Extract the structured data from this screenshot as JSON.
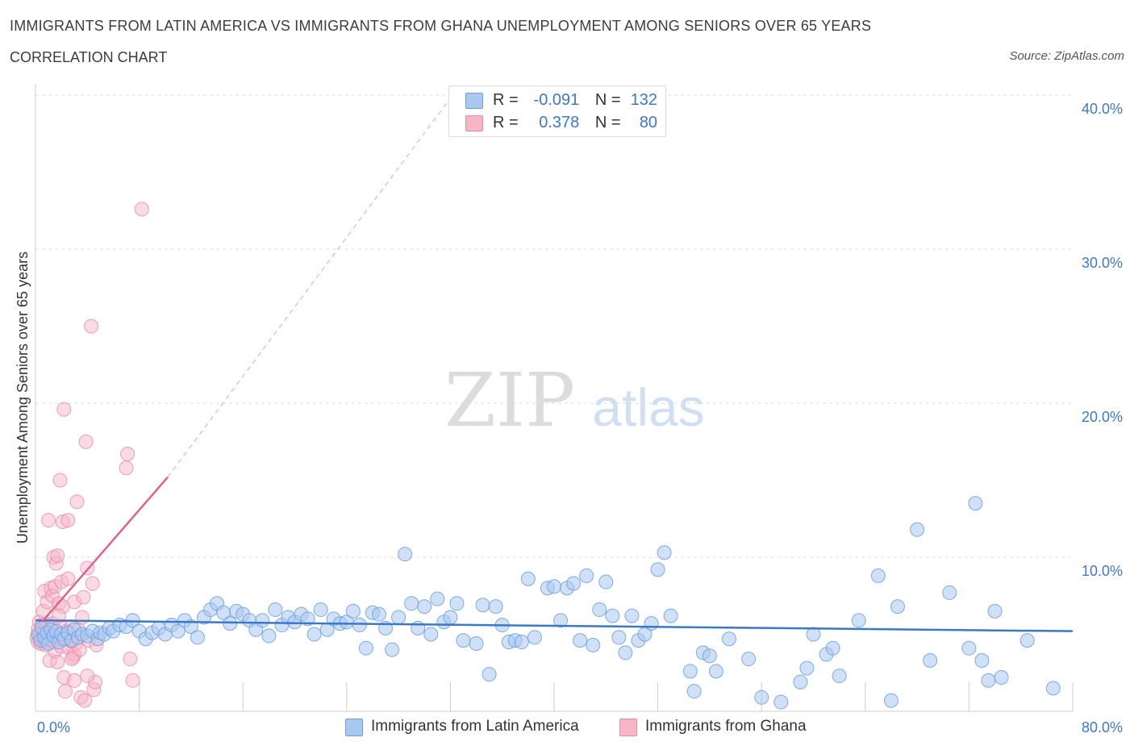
{
  "header": {
    "title": "IMMIGRANTS FROM LATIN AMERICA VS IMMIGRANTS FROM GHANA UNEMPLOYMENT AMONG SENIORS OVER 65 YEARS",
    "subtitle": "CORRELATION CHART",
    "source": "Source: ZipAtlas.com"
  },
  "legend": {
    "r_label": "R =",
    "n_label": "N =",
    "series": [
      {
        "r": "-0.091",
        "n": "132"
      },
      {
        "r": "0.378",
        "n": "80"
      }
    ]
  },
  "watermark": {
    "zip": "ZIP",
    "atlas": "atlas"
  },
  "colors": {
    "blue_fill": "#a9c8f0",
    "blue_stroke": "#6a9ee0",
    "blue_line": "#3b78c7",
    "pink_fill": "#f6b6c8",
    "pink_stroke": "#e88aa6",
    "pink_line": "#e0628c",
    "axis_label": "#3d78c9",
    "grid": "#dcdcdc"
  },
  "chart_data": {
    "type": "scatter",
    "title": "IMMIGRANTS FROM LATIN AMERICA VS IMMIGRANTS FROM GHANA UNEMPLOYMENT AMONG SENIORS OVER 65 YEARS",
    "xlabel": "",
    "ylabel": "Unemployment Among Seniors over 65 years",
    "xlim": [
      0,
      80
    ],
    "ylim": [
      0,
      40
    ],
    "x_tick_labels": [
      "0.0%",
      "80.0%"
    ],
    "y_ticks": [
      10,
      20,
      30,
      40
    ],
    "y_tick_labels": [
      "10.0%",
      "20.0%",
      "30.0%",
      "40.0%"
    ],
    "series": [
      {
        "name": "Immigrants from Latin America",
        "color": "blue",
        "trend": {
          "x0": 0,
          "y0": 5.9,
          "x1": 80,
          "y1": 5.2
        },
        "points": [
          [
            0.2,
            5.0
          ],
          [
            0.4,
            4.6
          ],
          [
            0.5,
            5.4
          ],
          [
            0.7,
            4.8
          ],
          [
            0.9,
            5.1
          ],
          [
            1.0,
            4.4
          ],
          [
            1.2,
            5.3
          ],
          [
            1.4,
            4.9
          ],
          [
            1.6,
            5.2
          ],
          [
            1.8,
            4.5
          ],
          [
            2.0,
            5.0
          ],
          [
            2.2,
            4.7
          ],
          [
            2.5,
            5.1
          ],
          [
            2.8,
            4.6
          ],
          [
            3.0,
            5.3
          ],
          [
            3.3,
            4.8
          ],
          [
            3.6,
            5.0
          ],
          [
            4.0,
            4.9
          ],
          [
            4.4,
            5.2
          ],
          [
            4.8,
            4.7
          ],
          [
            5.0,
            5.1
          ],
          [
            5.3,
            5.0
          ],
          [
            5.7,
            5.4
          ],
          [
            6.0,
            5.2
          ],
          [
            6.5,
            5.6
          ],
          [
            7.0,
            5.5
          ],
          [
            7.5,
            5.9
          ],
          [
            8.0,
            5.2
          ],
          [
            8.5,
            4.7
          ],
          [
            9.0,
            5.1
          ],
          [
            9.5,
            5.4
          ],
          [
            10.0,
            5.0
          ],
          [
            10.5,
            5.6
          ],
          [
            11.0,
            5.2
          ],
          [
            11.5,
            5.9
          ],
          [
            12.0,
            5.5
          ],
          [
            12.5,
            4.8
          ],
          [
            13.0,
            6.1
          ],
          [
            13.5,
            6.6
          ],
          [
            14.0,
            7.0
          ],
          [
            14.5,
            6.4
          ],
          [
            15.0,
            5.7
          ],
          [
            15.5,
            6.5
          ],
          [
            16.0,
            6.3
          ],
          [
            16.5,
            5.9
          ],
          [
            17.0,
            5.3
          ],
          [
            17.5,
            5.9
          ],
          [
            18.0,
            4.9
          ],
          [
            18.5,
            6.6
          ],
          [
            19.0,
            5.6
          ],
          [
            19.5,
            6.1
          ],
          [
            20.0,
            5.8
          ],
          [
            20.5,
            6.3
          ],
          [
            21.0,
            6.0
          ],
          [
            21.5,
            5.0
          ],
          [
            22.0,
            6.6
          ],
          [
            22.5,
            5.3
          ],
          [
            23.0,
            6.0
          ],
          [
            23.5,
            5.7
          ],
          [
            24.0,
            5.8
          ],
          [
            24.5,
            6.5
          ],
          [
            25.0,
            5.6
          ],
          [
            25.5,
            4.1
          ],
          [
            26.0,
            6.4
          ],
          [
            26.5,
            6.3
          ],
          [
            27.0,
            5.4
          ],
          [
            27.5,
            4.0
          ],
          [
            28.0,
            6.1
          ],
          [
            28.5,
            10.2
          ],
          [
            29.0,
            7.0
          ],
          [
            29.5,
            5.4
          ],
          [
            30.0,
            6.8
          ],
          [
            30.5,
            5.0
          ],
          [
            31.0,
            7.3
          ],
          [
            31.5,
            5.8
          ],
          [
            32.0,
            6.1
          ],
          [
            32.5,
            7.0
          ],
          [
            33.0,
            4.6
          ],
          [
            34.0,
            4.4
          ],
          [
            34.5,
            6.9
          ],
          [
            35.0,
            2.4
          ],
          [
            35.5,
            6.8
          ],
          [
            36.0,
            5.6
          ],
          [
            36.5,
            4.5
          ],
          [
            37.0,
            4.6
          ],
          [
            37.5,
            4.5
          ],
          [
            38.0,
            8.6
          ],
          [
            38.5,
            4.8
          ],
          [
            39.5,
            8.0
          ],
          [
            40.0,
            8.1
          ],
          [
            40.5,
            5.9
          ],
          [
            41.0,
            8.0
          ],
          [
            41.5,
            8.3
          ],
          [
            42.0,
            4.6
          ],
          [
            42.5,
            8.8
          ],
          [
            43.0,
            4.3
          ],
          [
            43.5,
            6.6
          ],
          [
            44.0,
            8.4
          ],
          [
            44.5,
            6.2
          ],
          [
            45.0,
            4.8
          ],
          [
            45.5,
            3.8
          ],
          [
            46.0,
            6.2
          ],
          [
            46.5,
            4.6
          ],
          [
            47.0,
            5.0
          ],
          [
            47.5,
            5.7
          ],
          [
            48.0,
            9.2
          ],
          [
            48.5,
            10.3
          ],
          [
            49.0,
            6.2
          ],
          [
            50.5,
            2.6
          ],
          [
            50.8,
            1.3
          ],
          [
            51.5,
            3.8
          ],
          [
            52.0,
            3.6
          ],
          [
            52.5,
            2.6
          ],
          [
            53.5,
            4.7
          ],
          [
            55.0,
            3.4
          ],
          [
            56.0,
            0.9
          ],
          [
            57.5,
            0.6
          ],
          [
            59.0,
            1.9
          ],
          [
            59.5,
            2.8
          ],
          [
            60.0,
            5.0
          ],
          [
            61.0,
            3.7
          ],
          [
            61.5,
            4.1
          ],
          [
            62.0,
            2.3
          ],
          [
            63.5,
            5.9
          ],
          [
            65.0,
            8.8
          ],
          [
            66.0,
            0.7
          ],
          [
            66.5,
            6.8
          ],
          [
            68.0,
            11.8
          ],
          [
            69.0,
            3.3
          ],
          [
            70.5,
            7.7
          ],
          [
            72.0,
            4.1
          ],
          [
            72.5,
            13.5
          ],
          [
            73.0,
            3.3
          ],
          [
            73.5,
            2.0
          ],
          [
            74.0,
            6.5
          ],
          [
            74.5,
            2.2
          ],
          [
            76.5,
            4.6
          ],
          [
            78.5,
            1.5
          ]
        ]
      },
      {
        "name": "Immigrants from Ghana",
        "color": "pink",
        "trend": {
          "x0": 0.5,
          "y0": 5.8,
          "x1": 10.2,
          "y1": 15.2
        },
        "trend_dashed": {
          "x0": 10.2,
          "y0": 15.2,
          "x1": 32.0,
          "y1": 39.8
        },
        "points": [
          [
            0.1,
            4.8
          ],
          [
            0.2,
            5.3
          ],
          [
            0.2,
            4.5
          ],
          [
            0.3,
            5.8
          ],
          [
            0.3,
            4.9
          ],
          [
            0.4,
            5.1
          ],
          [
            0.4,
            4.4
          ],
          [
            0.5,
            5.6
          ],
          [
            0.5,
            4.7
          ],
          [
            0.6,
            5.0
          ],
          [
            0.6,
            6.5
          ],
          [
            0.7,
            4.6
          ],
          [
            0.7,
            7.8
          ],
          [
            0.8,
            5.4
          ],
          [
            0.8,
            4.3
          ],
          [
            0.9,
            7.1
          ],
          [
            0.9,
            5.0
          ],
          [
            1.0,
            12.4
          ],
          [
            1.0,
            4.8
          ],
          [
            1.1,
            5.2
          ],
          [
            1.1,
            3.3
          ],
          [
            1.2,
            8.0
          ],
          [
            1.2,
            4.6
          ],
          [
            1.3,
            7.5
          ],
          [
            1.3,
            5.7
          ],
          [
            1.4,
            10.0
          ],
          [
            1.4,
            4.5
          ],
          [
            1.5,
            8.1
          ],
          [
            1.5,
            3.9
          ],
          [
            1.6,
            9.6
          ],
          [
            1.6,
            5.1
          ],
          [
            1.7,
            10.1
          ],
          [
            1.7,
            3.2
          ],
          [
            1.8,
            7.0
          ],
          [
            1.8,
            4.9
          ],
          [
            1.9,
            15.0
          ],
          [
            1.9,
            5.5
          ],
          [
            2.0,
            8.4
          ],
          [
            2.0,
            4.2
          ],
          [
            2.1,
            12.3
          ],
          [
            2.1,
            6.8
          ],
          [
            2.2,
            19.6
          ],
          [
            2.2,
            2.2
          ],
          [
            2.3,
            4.7
          ],
          [
            2.3,
            1.3
          ],
          [
            2.4,
            5.2
          ],
          [
            2.5,
            12.4
          ],
          [
            2.5,
            8.6
          ],
          [
            2.6,
            4.1
          ],
          [
            2.7,
            4.6
          ],
          [
            2.8,
            5.5
          ],
          [
            2.9,
            3.5
          ],
          [
            3.0,
            7.1
          ],
          [
            3.0,
            3.7
          ],
          [
            3.1,
            4.4
          ],
          [
            3.2,
            13.6
          ],
          [
            3.3,
            5.3
          ],
          [
            3.4,
            4.0
          ],
          [
            3.5,
            0.9
          ],
          [
            3.6,
            6.1
          ],
          [
            3.7,
            7.4
          ],
          [
            3.8,
            0.7
          ],
          [
            3.9,
            17.5
          ],
          [
            4.0,
            9.3
          ],
          [
            4.1,
            4.6
          ],
          [
            4.3,
            25.0
          ],
          [
            4.4,
            8.3
          ],
          [
            4.5,
            1.4
          ],
          [
            4.6,
            1.9
          ],
          [
            4.7,
            4.3
          ],
          [
            4.0,
            2.3
          ],
          [
            3.0,
            2.0
          ],
          [
            2.8,
            3.4
          ],
          [
            1.8,
            6.2
          ],
          [
            7.0,
            15.8
          ],
          [
            7.1,
            16.7
          ],
          [
            7.3,
            3.4
          ],
          [
            7.5,
            2.0
          ],
          [
            8.2,
            32.6
          ],
          [
            0.9,
            5.6
          ]
        ]
      }
    ]
  },
  "bottom_legend": [
    {
      "label": "Immigrants from Latin America"
    },
    {
      "label": "Immigrants from Ghana"
    }
  ]
}
